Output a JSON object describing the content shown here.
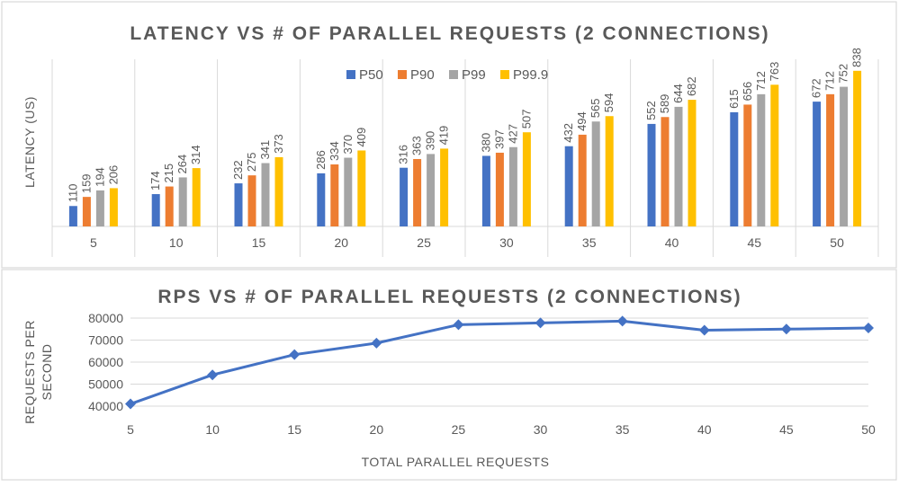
{
  "chart_data": [
    {
      "type": "bar",
      "title": "LATENCY VS # OF PARALLEL REQUESTS (2 CONNECTIONS)",
      "ylabel": "LATENCY (US)",
      "xlabel": "",
      "categories": [
        "5",
        "10",
        "15",
        "20",
        "25",
        "30",
        "35",
        "40",
        "45",
        "50"
      ],
      "ylim": [
        0,
        900
      ],
      "legend": "top",
      "grid": "vertical-separators",
      "series": [
        {
          "name": "P50",
          "color": "#4472C4",
          "values": [
            110,
            174,
            232,
            286,
            316,
            380,
            432,
            552,
            615,
            672
          ]
        },
        {
          "name": "P90",
          "color": "#ED7D31",
          "values": [
            159,
            215,
            275,
            334,
            363,
            397,
            494,
            589,
            656,
            712
          ]
        },
        {
          "name": "P99",
          "color": "#A5A5A5",
          "values": [
            194,
            264,
            341,
            370,
            390,
            427,
            565,
            644,
            712,
            752
          ]
        },
        {
          "name": "P99.9",
          "color": "#FFC000",
          "values": [
            206,
            314,
            373,
            409,
            419,
            507,
            594,
            682,
            763,
            838
          ]
        }
      ]
    },
    {
      "type": "line",
      "title": "RPS VS # OF PARALLEL REQUESTS (2 CONNECTIONS)",
      "ylabel": "REQUESTS PER SECOND",
      "xlabel": "TOTAL PARALLEL REQUESTS",
      "x": [
        5,
        10,
        15,
        20,
        25,
        30,
        35,
        40,
        45,
        50
      ],
      "xticks": [
        "5",
        "10",
        "15",
        "20",
        "25",
        "30",
        "35",
        "40",
        "45",
        "50"
      ],
      "yticks": [
        "40000",
        "50000",
        "60000",
        "70000",
        "80000"
      ],
      "ylim": [
        40000,
        80000
      ],
      "grid": "horizontal",
      "color": "#4472C4",
      "series": [
        {
          "values": [
            41000,
            54200,
            63400,
            68600,
            77000,
            77800,
            78600,
            74500,
            75000,
            75500
          ]
        }
      ]
    }
  ]
}
